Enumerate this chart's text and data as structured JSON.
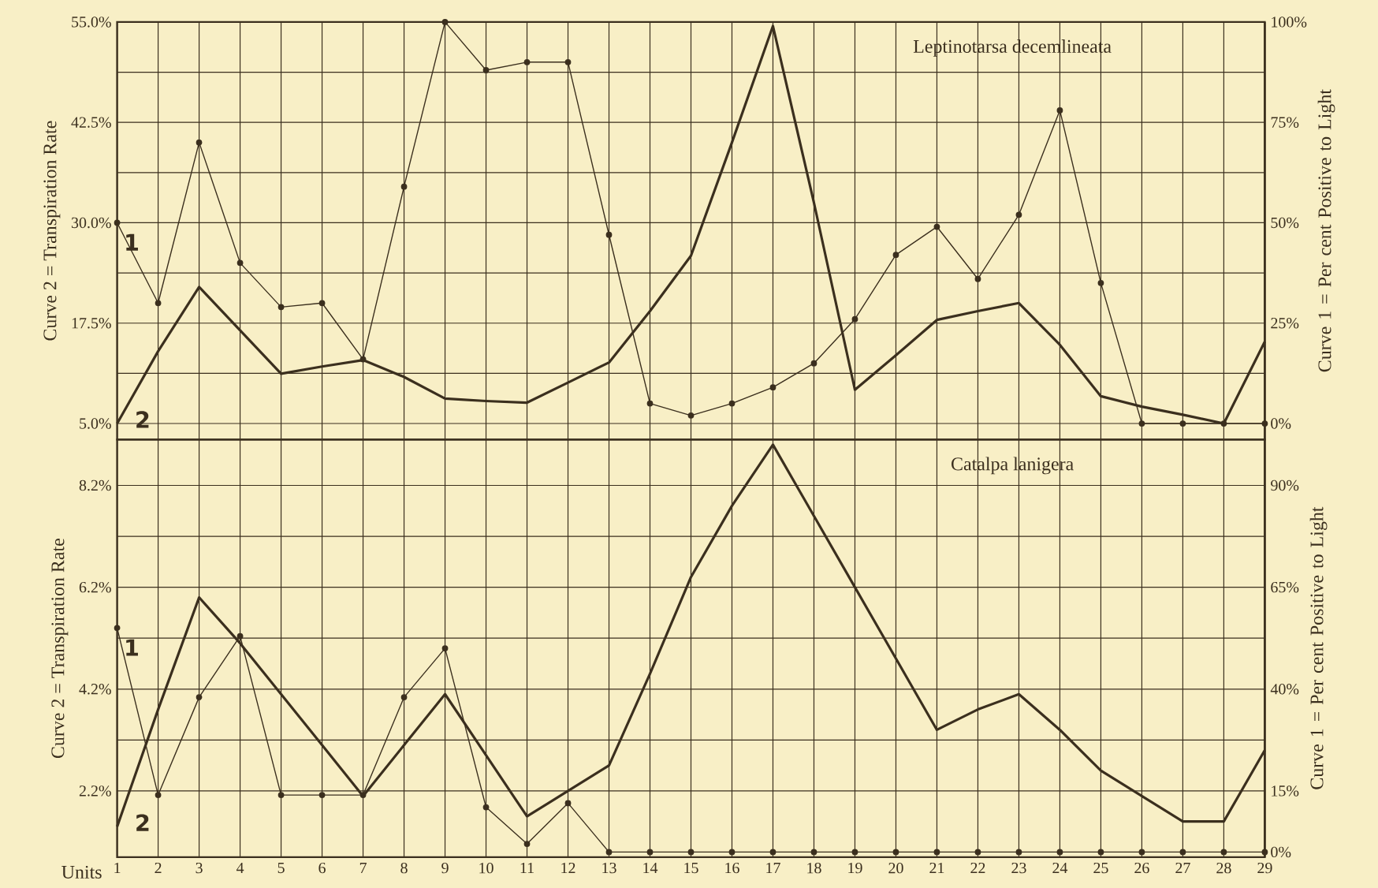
{
  "chart_data": [
    {
      "type": "line",
      "title": "Leptinotarsa decemlineata",
      "ylabel": "Curve 2 = Transpiration Rate",
      "y2label": "Curve 1 = Per cent Positive to Light",
      "x": [
        1,
        2,
        3,
        4,
        5,
        6,
        7,
        8,
        9,
        10,
        11,
        12,
        13,
        14,
        15,
        16,
        17,
        18,
        19,
        20,
        21,
        22,
        23,
        24,
        25,
        26,
        27,
        28,
        29
      ],
      "xlim": [
        1,
        29
      ],
      "xticks": [
        1,
        2,
        3,
        4,
        5,
        6,
        7,
        8,
        9,
        10,
        11,
        12,
        13,
        14,
        15,
        16,
        17,
        18,
        19,
        20,
        21,
        22,
        23,
        24,
        25,
        26,
        27,
        28,
        29
      ],
      "ylim": [
        3,
        55
      ],
      "yticks": [
        {
          "value": 5,
          "label": "5.0%"
        },
        {
          "value": 17.5,
          "label": "17.5%"
        },
        {
          "value": 30,
          "label": "30.0%"
        },
        {
          "value": 42.5,
          "label": "42.5%"
        },
        {
          "value": 55,
          "label": "55.0%"
        }
      ],
      "y2lim": [
        -4,
        100
      ],
      "y2ticks": [
        {
          "value": 0,
          "label": "0%"
        },
        {
          "value": 25,
          "label": "25%"
        },
        {
          "value": 50,
          "label": "50%"
        },
        {
          "value": 75,
          "label": "75%"
        },
        {
          "value": 100,
          "label": "100%"
        }
      ],
      "grid": true,
      "tick_labels": "y",
      "series": [
        {
          "name": "1",
          "color": "#3b2f1e",
          "axis": "y2",
          "marker": "circle",
          "values": [
            50,
            30,
            70,
            40,
            29,
            30,
            16,
            59,
            100,
            88,
            90,
            90,
            47,
            5,
            2,
            5,
            9,
            15,
            26,
            42,
            49,
            36,
            52,
            78,
            35,
            0,
            0,
            0,
            0
          ]
        },
        {
          "name": "2",
          "color": "#3b2f1e",
          "marker": "none",
          "values": [
            5.0,
            14,
            22,
            16.6,
            11.2,
            12.1,
            12.9,
            10.8,
            8.1,
            7.8,
            7.6,
            10.1,
            12.6,
            19.0,
            25.9,
            40.0,
            54.5,
            32.5,
            9.2,
            13.5,
            17.9,
            19.0,
            20.0,
            14.8,
            8.4,
            7.1,
            6.1,
            5.0,
            15.2
          ]
        }
      ]
    },
    {
      "type": "line",
      "title": "Catalpa lanigera",
      "xlabel": "Units",
      "ylabel": "Curve 2 = Transpiration Rate",
      "y2label": "Curve 1 = Per cent Positive to Light",
      "x": [
        1,
        2,
        3,
        4,
        5,
        6,
        7,
        8,
        9,
        10,
        11,
        12,
        13,
        14,
        15,
        16,
        17,
        18,
        19,
        20,
        21,
        22,
        23,
        24,
        25,
        26,
        27,
        28,
        29
      ],
      "xlim": [
        1,
        29
      ],
      "xticks": [
        1,
        2,
        3,
        4,
        5,
        6,
        7,
        8,
        9,
        10,
        11,
        12,
        13,
        14,
        15,
        16,
        17,
        18,
        19,
        20,
        21,
        22,
        23,
        24,
        25,
        26,
        27,
        28,
        29
      ],
      "ylim": [
        0.9,
        9.1
      ],
      "yticks": [
        {
          "value": 2.2,
          "label": "2.2%"
        },
        {
          "value": 4.2,
          "label": "4.2%"
        },
        {
          "value": 6.2,
          "label": "6.2%"
        },
        {
          "value": 8.2,
          "label": "8.2%"
        }
      ],
      "y2lim": [
        -1.25,
        101.25
      ],
      "y2ticks": [
        {
          "value": 0,
          "label": "0%"
        },
        {
          "value": 15,
          "label": "15%"
        },
        {
          "value": 40,
          "label": "40%"
        },
        {
          "value": 65,
          "label": "65%"
        },
        {
          "value": 90,
          "label": "90%"
        }
      ],
      "grid": true,
      "series": [
        {
          "name": "1",
          "color": "#3b2f1e",
          "axis": "y2",
          "marker": "circle",
          "values": [
            55,
            14,
            38,
            53,
            14,
            14,
            14,
            38,
            50,
            11,
            2,
            12,
            0,
            0,
            0,
            0,
            0,
            0,
            0,
            0,
            0,
            0,
            0,
            0,
            0,
            0,
            0,
            0,
            0
          ]
        },
        {
          "name": "2",
          "color": "#3b2f1e",
          "marker": "none",
          "values": [
            1.5,
            3.8,
            6.0,
            5.1,
            4.1,
            3.1,
            2.1,
            3.1,
            4.1,
            2.9,
            1.7,
            2.2,
            2.7,
            4.5,
            6.4,
            7.8,
            9.0,
            7.6,
            6.2,
            4.8,
            3.4,
            3.8,
            4.1,
            3.4,
            2.6,
            2.1,
            1.6,
            1.6,
            3.0
          ]
        }
      ]
    }
  ]
}
